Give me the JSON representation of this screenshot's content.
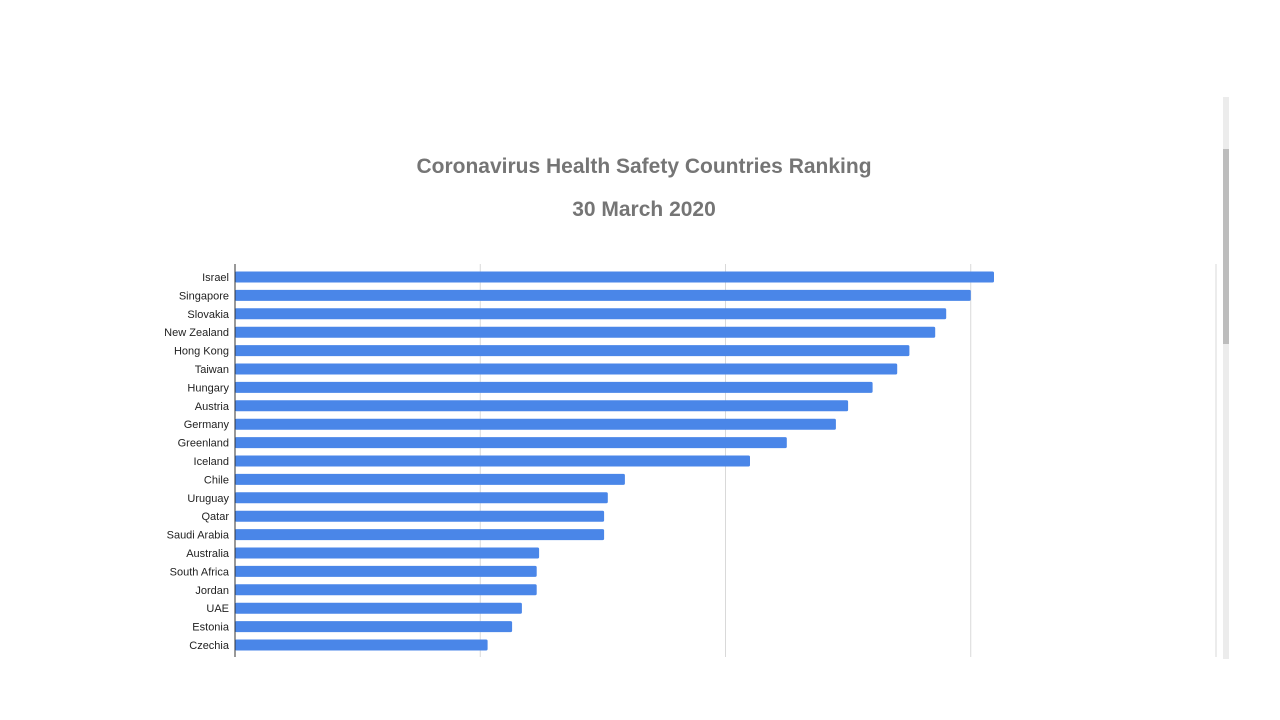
{
  "chart_data": {
    "type": "bar",
    "orientation": "horizontal",
    "title": "Coronavirus Health Safety Countries Ranking",
    "subtitle": "30 March 2020",
    "xlabel": "",
    "ylabel": "",
    "xlim": [
      0,
      800
    ],
    "x_ticks": [
      0,
      200,
      400,
      600,
      800
    ],
    "tick_labels_visible": false,
    "grid": true,
    "legend": "none",
    "categories": [
      "Israel",
      "Singapore",
      "Slovakia",
      "New Zealand",
      "Hong Kong",
      "Taiwan",
      "Hungary",
      "Austria",
      "Germany",
      "Greenland",
      "Iceland",
      "Chile",
      "Uruguay",
      "Qatar",
      "Saudi Arabia",
      "Australia",
      "South Africa",
      "Jordan",
      "UAE",
      "Estonia",
      "Czechia"
    ],
    "values": [
      619,
      600,
      580,
      571,
      550,
      540,
      520,
      500,
      490,
      450,
      420,
      318,
      304,
      301,
      301,
      248,
      246,
      246,
      234,
      226,
      206
    ],
    "bar_color": "#4a86e8"
  }
}
